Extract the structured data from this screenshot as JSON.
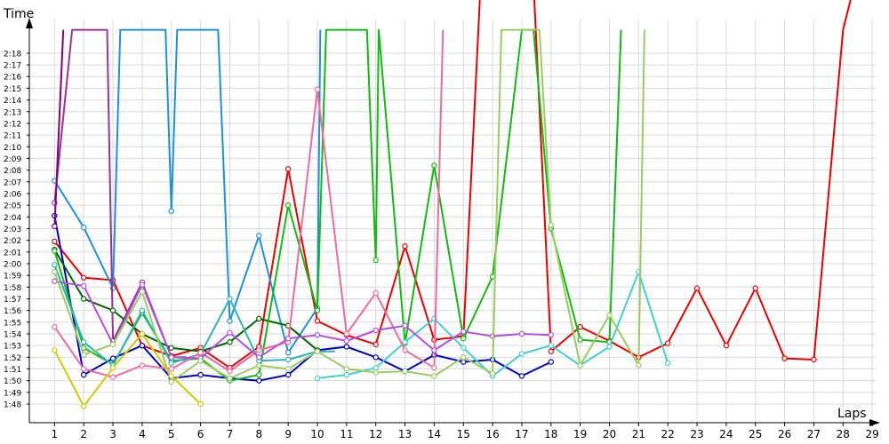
{
  "chart_data": {
    "type": "line",
    "xlabel": "Laps",
    "ylabel": "Time",
    "x_ticks": [
      1,
      2,
      3,
      4,
      5,
      6,
      7,
      8,
      9,
      10,
      11,
      12,
      13,
      14,
      15,
      16,
      17,
      18,
      19,
      20,
      21,
      22,
      23,
      24,
      25,
      26,
      27,
      28,
      29
    ],
    "y_ticks": [
      {
        "v": 108,
        "label": "1:48"
      },
      {
        "v": 109,
        "label": "1:49"
      },
      {
        "v": 110,
        "label": "1:50"
      },
      {
        "v": 111,
        "label": "1:51"
      },
      {
        "v": 112,
        "label": "1:52"
      },
      {
        "v": 113,
        "label": "1:53"
      },
      {
        "v": 114,
        "label": "1:54"
      },
      {
        "v": 115,
        "label": "1:55"
      },
      {
        "v": 116,
        "label": "1:56"
      },
      {
        "v": 117,
        "label": "1:57"
      },
      {
        "v": 118,
        "label": "1:58"
      },
      {
        "v": 119,
        "label": "1:59"
      },
      {
        "v": 120,
        "label": "2:00"
      },
      {
        "v": 121,
        "label": "2:01"
      },
      {
        "v": 122,
        "label": "2:02"
      },
      {
        "v": 123,
        "label": "2:03"
      },
      {
        "v": 124,
        "label": "2:04"
      },
      {
        "v": 125,
        "label": "2:05"
      },
      {
        "v": 126,
        "label": "2:06"
      },
      {
        "v": 127,
        "label": "2:07"
      },
      {
        "v": 128,
        "label": "2:08"
      },
      {
        "v": 129,
        "label": "2:09"
      },
      {
        "v": 130,
        "label": "2:10"
      },
      {
        "v": 131,
        "label": "2:11"
      },
      {
        "v": 132,
        "label": "2:12"
      },
      {
        "v": 133,
        "label": "2:13"
      },
      {
        "v": 134,
        "label": "2:14"
      },
      {
        "v": 135,
        "label": "2:15"
      },
      {
        "v": 136,
        "label": "2:16"
      },
      {
        "v": 137,
        "label": "2:17"
      },
      {
        "v": 138,
        "label": "2:18"
      }
    ],
    "xlim": [
      0,
      29.5
    ],
    "ylim": [
      107,
      140
    ],
    "grid": true,
    "series": [
      {
        "color": "#ee0000",
        "points": [
          [
            1,
            121.9
          ],
          [
            2,
            118.8
          ],
          [
            3,
            118.6
          ],
          [
            4,
            113.0
          ],
          [
            5,
            112.1
          ],
          [
            6,
            112.8
          ],
          [
            7,
            111.1
          ],
          [
            8,
            112.9
          ],
          [
            9,
            128.1
          ],
          [
            10,
            115.1
          ],
          [
            11,
            113.9
          ],
          [
            12,
            113.1
          ],
          [
            13,
            121.5
          ],
          [
            14,
            113.5
          ],
          [
            15,
            113.8
          ],
          [
            16,
            165
          ],
          [
            17,
            165
          ],
          [
            18,
            112.5
          ],
          [
            19,
            114.6
          ],
          [
            20,
            113.4
          ],
          [
            21,
            112.0
          ],
          [
            22,
            113.2
          ],
          [
            23,
            117.9
          ],
          [
            24,
            113.0
          ],
          [
            25,
            117.9
          ],
          [
            26,
            111.9
          ],
          [
            27,
            111.8
          ],
          [
            28,
            140
          ],
          [
            29,
            150
          ]
        ]
      },
      {
        "color": "#0000cc",
        "points": [
          [
            1,
            124.1
          ],
          [
            2,
            110.5
          ],
          [
            3,
            111.9
          ],
          [
            4,
            113.0
          ],
          [
            5,
            110.2
          ],
          [
            6,
            110.5
          ],
          [
            7,
            110.2
          ],
          [
            8,
            110.0
          ],
          [
            9,
            110.5
          ],
          [
            10,
            112.6
          ],
          [
            11,
            112.9
          ],
          [
            12,
            112.0
          ],
          [
            13,
            110.8
          ],
          [
            14,
            112.2
          ],
          [
            15,
            111.6
          ],
          [
            16,
            111.8
          ],
          [
            17,
            110.4
          ],
          [
            18,
            111.6
          ]
        ]
      },
      {
        "color": "#1e90e0",
        "points": [
          [
            1,
            127.1
          ],
          [
            2,
            123.1
          ],
          [
            3,
            117.9
          ],
          [
            3.25,
            140
          ],
          [
            4.8,
            140
          ],
          [
            5,
            124.5
          ],
          [
            5.2,
            140
          ],
          [
            6.6,
            140
          ],
          [
            7,
            115.1
          ],
          [
            8,
            122.4
          ],
          [
            9,
            112.4
          ],
          [
            10,
            116.2
          ],
          [
            10.1,
            140
          ]
        ]
      },
      {
        "color": "#993399",
        "points": [
          [
            1,
            125.2
          ],
          [
            1.6,
            140
          ],
          [
            2.3,
            140
          ],
          [
            2.8,
            140
          ],
          [
            3,
            113.4
          ],
          [
            4,
            118.4
          ],
          [
            5,
            112.0
          ],
          [
            5.5,
            112
          ]
        ]
      },
      {
        "color": "#800080",
        "points": [
          [
            1,
            123.2
          ],
          [
            1.3,
            140
          ]
        ]
      },
      {
        "color": "#006400",
        "points": [
          [
            1,
            121.2
          ],
          [
            2,
            117.0
          ],
          [
            3,
            116.0
          ],
          [
            4,
            114.0
          ],
          [
            5,
            112.8
          ],
          [
            6,
            112.5
          ],
          [
            7,
            113.3
          ],
          [
            8,
            115.3
          ],
          [
            9,
            114.7
          ],
          [
            10,
            112.6
          ]
        ]
      },
      {
        "color": "#11bb11",
        "points": [
          [
            1,
            121.1
          ],
          [
            2,
            112.8
          ],
          [
            3,
            111.4
          ],
          [
            4,
            115.8
          ],
          [
            5,
            111.7
          ],
          [
            6,
            111.9
          ],
          [
            7,
            110.0
          ],
          [
            8,
            110.5
          ],
          [
            9,
            125.0
          ],
          [
            10,
            116.0
          ],
          [
            10.3,
            140
          ],
          [
            11.7,
            140
          ],
          [
            12,
            120.3
          ],
          [
            12.1,
            140
          ],
          [
            13,
            113.2
          ],
          [
            14,
            128.4
          ],
          [
            15,
            113.6
          ],
          [
            16,
            118.9
          ],
          [
            17,
            140
          ],
          [
            17.4,
            140
          ],
          [
            18,
            123.0
          ],
          [
            19,
            113.5
          ],
          [
            20,
            113.3
          ],
          [
            20.4,
            140
          ]
        ]
      },
      {
        "color": "#2bb5b5",
        "points": [
          [
            1,
            119.9
          ],
          [
            2,
            113.3
          ],
          [
            3,
            111.3
          ],
          [
            4,
            116.0
          ],
          [
            5,
            111.5
          ],
          [
            6,
            112.3
          ],
          [
            7,
            117.0
          ],
          [
            8,
            111.7
          ],
          [
            9,
            111.8
          ],
          [
            10,
            112.5
          ],
          [
            10.6,
            112.5
          ]
        ]
      },
      {
        "color": "#40d0d0",
        "points": [
          [
            10,
            110.2
          ],
          [
            11,
            110.5
          ],
          [
            12,
            111.1
          ],
          [
            13,
            113.3
          ],
          [
            14,
            115.3
          ],
          [
            15,
            112.8
          ],
          [
            16,
            110.4
          ],
          [
            17,
            112.3
          ],
          [
            18,
            113.0
          ],
          [
            19,
            111.3
          ],
          [
            20,
            112.9
          ],
          [
            21,
            119.3
          ],
          [
            22,
            111.5
          ]
        ]
      },
      {
        "color": "#f06aa0",
        "points": [
          [
            1,
            114.6
          ],
          [
            2,
            111.0
          ],
          [
            3,
            110.3
          ],
          [
            4,
            111.3
          ],
          [
            5,
            111.0
          ],
          [
            6,
            112.4
          ],
          [
            7,
            110.8
          ],
          [
            8,
            112.6
          ],
          [
            9,
            113.3
          ],
          [
            10,
            134.9
          ],
          [
            11,
            114.0
          ],
          [
            12,
            117.5
          ],
          [
            13,
            112.6
          ],
          [
            14,
            111.1
          ],
          [
            14.3,
            140
          ]
        ]
      },
      {
        "color": "#b44fe0",
        "points": [
          [
            1,
            118.5
          ],
          [
            2,
            118.1
          ],
          [
            3,
            113.1
          ],
          [
            4,
            118.2
          ],
          [
            5,
            112.0
          ],
          [
            6,
            111.9
          ],
          [
            7,
            114.1
          ],
          [
            8,
            112.0
          ],
          [
            9,
            113.6
          ],
          [
            10,
            113.9
          ],
          [
            11,
            113.4
          ],
          [
            12,
            114.3
          ],
          [
            13,
            114.7
          ],
          [
            14,
            112.6
          ],
          [
            15,
            114.2
          ],
          [
            16,
            113.8
          ],
          [
            17,
            114.0
          ],
          [
            18,
            113.9
          ]
        ]
      },
      {
        "color": "#9acd60",
        "points": [
          [
            1,
            119.3
          ],
          [
            2,
            112.2
          ],
          [
            3,
            113.1
          ],
          [
            4,
            117.6
          ],
          [
            5,
            109.9
          ],
          [
            6,
            111.7
          ],
          [
            7,
            110.2
          ],
          [
            8,
            111.3
          ],
          [
            9,
            111.0
          ],
          [
            10,
            112.5
          ],
          [
            11,
            111.0
          ],
          [
            12,
            110.7
          ],
          [
            13,
            110.8
          ],
          [
            14,
            110.4
          ],
          [
            15,
            112.0
          ],
          [
            16,
            110.6
          ],
          [
            16.3,
            140
          ],
          [
            17.6,
            140
          ],
          [
            18,
            123.3
          ],
          [
            19,
            111.3
          ],
          [
            20,
            115.6
          ],
          [
            21,
            111.3
          ],
          [
            21.2,
            140
          ]
        ]
      },
      {
        "color": "#cccc00",
        "points": [
          [
            1,
            112.6
          ],
          [
            2,
            107.8
          ],
          [
            3,
            111.1
          ],
          [
            4,
            114.0
          ],
          [
            5,
            110.4
          ],
          [
            6,
            108.0
          ]
        ]
      }
    ]
  }
}
